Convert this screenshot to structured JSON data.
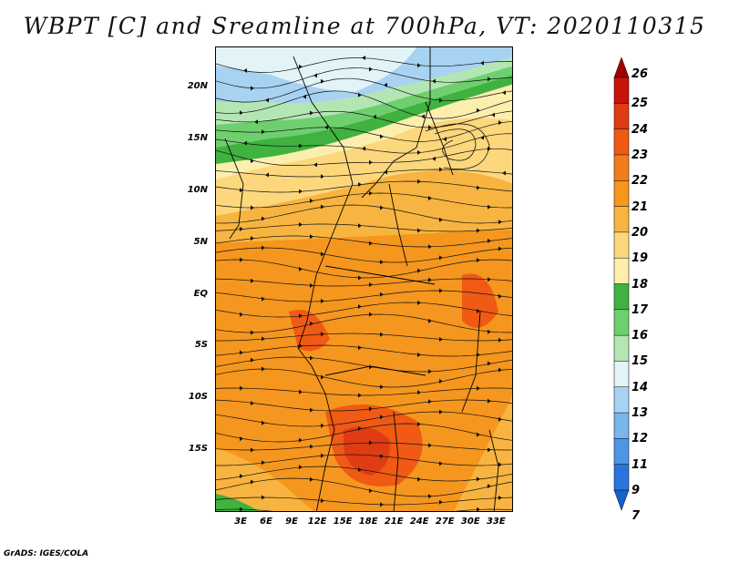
{
  "title": "WBPT [C] and Sreamline at 700hPa, VT: 2020110315",
  "footer": "GrADS: IGES/COLA",
  "map": {
    "lat_range": [
      -21,
      24
    ],
    "lon_range": [
      0,
      35
    ],
    "y_ticks": [
      {
        "value": 20,
        "label": "20N"
      },
      {
        "value": 15,
        "label": "15N"
      },
      {
        "value": 10,
        "label": "10N"
      },
      {
        "value": 5,
        "label": "5N"
      },
      {
        "value": 0,
        "label": "EQ"
      },
      {
        "value": -5,
        "label": "5S"
      },
      {
        "value": -10,
        "label": "10S"
      },
      {
        "value": -15,
        "label": "15S"
      }
    ],
    "x_ticks": [
      {
        "value": 3,
        "label": "3E"
      },
      {
        "value": 6,
        "label": "6E"
      },
      {
        "value": 9,
        "label": "9E"
      },
      {
        "value": 12,
        "label": "12E"
      },
      {
        "value": 15,
        "label": "15E"
      },
      {
        "value": 18,
        "label": "18E"
      },
      {
        "value": 21,
        "label": "21E"
      },
      {
        "value": 24,
        "label": "24E"
      },
      {
        "value": 27,
        "label": "27E"
      },
      {
        "value": 30,
        "label": "30E"
      },
      {
        "value": 33,
        "label": "33E"
      }
    ]
  },
  "colorbar": {
    "labels": [
      "26",
      "25",
      "24",
      "23",
      "22",
      "21",
      "20",
      "19",
      "18",
      "17",
      "16",
      "15",
      "14",
      "13",
      "12",
      "11",
      "9",
      "7"
    ],
    "colors": [
      "#a00000",
      "#c8140a",
      "#e03c14",
      "#f05a14",
      "#f37c1a",
      "#f5961e",
      "#f8b440",
      "#fcd77c",
      "#fcefae",
      "#3fb23f",
      "#6fcf6f",
      "#b4e6b4",
      "#e2f4f8",
      "#a8d2f2",
      "#78b6ec",
      "#4e96e4",
      "#2a74dc",
      "#1460d0"
    ]
  }
}
